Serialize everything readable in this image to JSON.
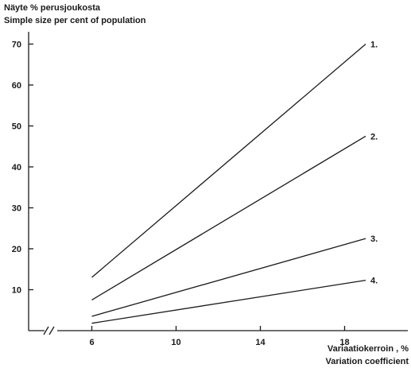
{
  "chart_data": {
    "type": "line",
    "ytitle_fi": "Näyte % perusjoukosta",
    "ytitle_en": "Simple size per cent of population",
    "xtitle_fi": "Variaatiokerroin , %",
    "xtitle_en": "Variation coefficient",
    "x_ticks": [
      6,
      10,
      14,
      18
    ],
    "x_tick_labels": [
      "6",
      "10",
      "14",
      "18"
    ],
    "y_ticks": [
      10,
      20,
      30,
      40,
      50,
      60,
      70
    ],
    "y_tick_labels": [
      "10",
      "20",
      "30",
      "40",
      "50",
      "60",
      "70"
    ],
    "xlim": [
      3,
      21
    ],
    "ylim": [
      0,
      73
    ],
    "x_axis_break": true,
    "grid": false,
    "series": [
      {
        "name": "1.",
        "x": [
          6,
          19
        ],
        "y": [
          13,
          70
        ]
      },
      {
        "name": "2.",
        "x": [
          6,
          19
        ],
        "y": [
          7.5,
          47.5
        ]
      },
      {
        "name": "3.",
        "x": [
          6,
          19
        ],
        "y": [
          3.5,
          22.5
        ]
      },
      {
        "name": "4.",
        "x": [
          6,
          19
        ],
        "y": [
          1.8,
          12.3
        ]
      }
    ]
  }
}
